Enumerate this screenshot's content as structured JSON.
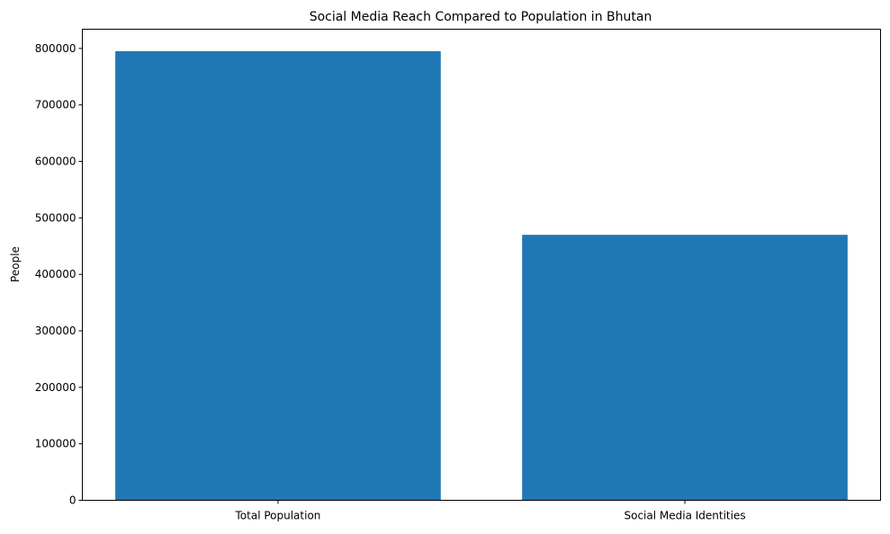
{
  "chart_data": {
    "type": "bar",
    "title": "Social Media Reach Compared to Population in Bhutan",
    "xlabel": "",
    "ylabel": "People",
    "categories": [
      "Total Population",
      "Social Media Identities"
    ],
    "values": [
      795000,
      470000
    ],
    "ylim": [
      0,
      834000
    ],
    "yticks": [
      0,
      100000,
      200000,
      300000,
      400000,
      500000,
      600000,
      700000,
      800000
    ],
    "grid": false,
    "bar_color": "#1f77b4"
  }
}
